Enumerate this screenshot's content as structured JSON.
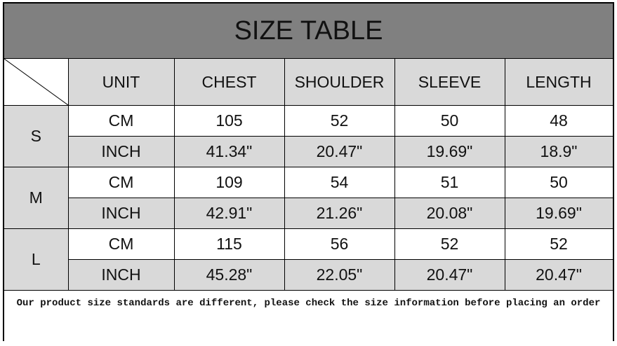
{
  "title": "SIZE TABLE",
  "headers": [
    "UNIT",
    "CHEST",
    "SHOULDER",
    "SLEEVE",
    "LENGTH"
  ],
  "sizes": [
    {
      "size": "S",
      "rows": [
        {
          "unit": "CM",
          "values": [
            "105",
            "52",
            "50",
            "48"
          ]
        },
        {
          "unit": "INCH",
          "values": [
            "41.34\"",
            "20.47\"",
            "19.69\"",
            "18.9\""
          ]
        }
      ]
    },
    {
      "size": "M",
      "rows": [
        {
          "unit": "CM",
          "values": [
            "109",
            "54",
            "51",
            "50"
          ]
        },
        {
          "unit": "INCH",
          "values": [
            "42.91\"",
            "21.26\"",
            "20.08\"",
            "19.69\""
          ]
        }
      ]
    },
    {
      "size": "L",
      "rows": [
        {
          "unit": "CM",
          "values": [
            "115",
            "56",
            "52",
            "52"
          ]
        },
        {
          "unit": "INCH",
          "values": [
            "45.28\"",
            "22.05\"",
            "20.47\"",
            "20.47\""
          ]
        }
      ]
    }
  ],
  "note": "Our product size standards are different, please check the size information before placing an order",
  "colors": {
    "title_bg": "#808080",
    "header_bg": "#d9d9d9",
    "inch_row_bg": "#d9d9d9",
    "cm_row_bg": "#ffffff"
  }
}
